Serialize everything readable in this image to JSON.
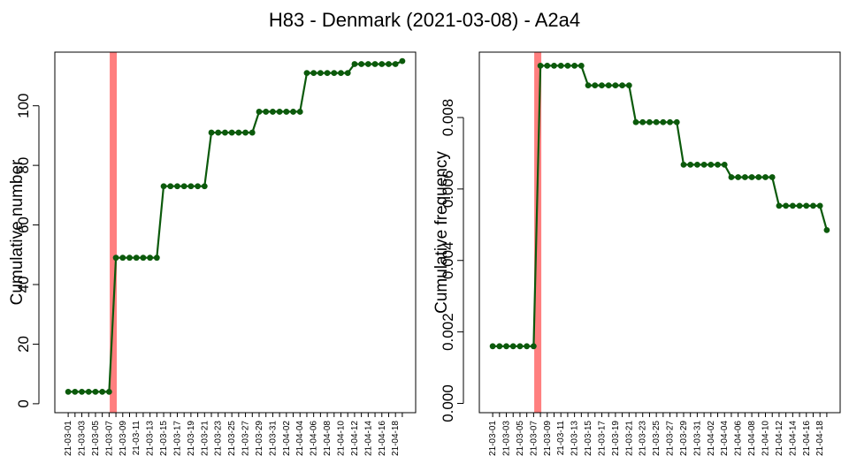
{
  "title": "H83 - Denmark (2021-03-08) - A2a4",
  "chart_data": [
    {
      "type": "line",
      "ylabel": "Cumulative number",
      "xlabel": "",
      "ylim": [
        -3,
        118
      ],
      "yticks": [
        0,
        20,
        40,
        60,
        80,
        100
      ],
      "ytick_labels": [
        "0",
        "20",
        "40",
        "60",
        "80",
        "100"
      ],
      "highlight_date": "2021-03-08",
      "highlight_color": "#ff7f7f",
      "line_color": "#0b5a0b",
      "x": [
        "21-03-01",
        "21-03-02",
        "21-03-03",
        "21-03-04",
        "21-03-05",
        "21-03-06",
        "21-03-07",
        "21-03-08",
        "21-03-09",
        "21-03-10",
        "21-03-11",
        "21-03-12",
        "21-03-13",
        "21-03-14",
        "21-03-15",
        "21-03-16",
        "21-03-17",
        "21-03-18",
        "21-03-19",
        "21-03-20",
        "21-03-21",
        "21-03-22",
        "21-03-23",
        "21-03-24",
        "21-03-25",
        "21-03-26",
        "21-03-27",
        "21-03-28",
        "21-03-29",
        "21-03-30",
        "21-03-31",
        "21-04-01",
        "21-04-02",
        "21-04-03",
        "21-04-04",
        "21-04-05",
        "21-04-06",
        "21-04-07",
        "21-04-08",
        "21-04-09",
        "21-04-10",
        "21-04-11",
        "21-04-12",
        "21-04-13",
        "21-04-14",
        "21-04-15",
        "21-04-16",
        "21-04-17",
        "21-04-18",
        "21-04-19"
      ],
      "x_tick_labels": [
        "21-03-01",
        "21-03-03",
        "21-03-05",
        "21-03-07",
        "21-03-09",
        "21-03-11",
        "21-03-13",
        "21-03-15",
        "21-03-17",
        "21-03-19",
        "21-03-21",
        "21-03-23",
        "21-03-25",
        "21-03-27",
        "21-03-29",
        "21-03-31",
        "21-04-02",
        "21-04-04",
        "21-04-06",
        "21-04-08",
        "21-04-10",
        "21-04-12",
        "21-04-14",
        "21-04-16",
        "21-04-18"
      ],
      "values": [
        4,
        4,
        4,
        4,
        4,
        4,
        4,
        49,
        49,
        49,
        49,
        49,
        49,
        49,
        73,
        73,
        73,
        73,
        73,
        73,
        73,
        91,
        91,
        91,
        91,
        91,
        91,
        91,
        98,
        98,
        98,
        98,
        98,
        98,
        98,
        111,
        111,
        111,
        111,
        111,
        111,
        111,
        114,
        114,
        114,
        114,
        114,
        114,
        114,
        115
      ]
    },
    {
      "type": "line",
      "ylabel": "Cumulative frequency",
      "xlabel": "",
      "ylim": [
        -0.00026,
        0.00983
      ],
      "yticks": [
        0,
        0.002,
        0.004,
        0.006,
        0.008
      ],
      "ytick_labels": [
        "0.000",
        "0.002",
        "0.004",
        "0.006",
        "0.008"
      ],
      "highlight_date": "2021-03-08",
      "highlight_color": "#ff7f7f",
      "line_color": "#0b5a0b",
      "x": [
        "21-03-01",
        "21-03-02",
        "21-03-03",
        "21-03-04",
        "21-03-05",
        "21-03-06",
        "21-03-07",
        "21-03-08",
        "21-03-09",
        "21-03-10",
        "21-03-11",
        "21-03-12",
        "21-03-13",
        "21-03-14",
        "21-03-15",
        "21-03-16",
        "21-03-17",
        "21-03-18",
        "21-03-19",
        "21-03-20",
        "21-03-21",
        "21-03-22",
        "21-03-23",
        "21-03-24",
        "21-03-25",
        "21-03-26",
        "21-03-27",
        "21-03-28",
        "21-03-29",
        "21-03-30",
        "21-03-31",
        "21-04-01",
        "21-04-02",
        "21-04-03",
        "21-04-04",
        "21-04-05",
        "21-04-06",
        "21-04-07",
        "21-04-08",
        "21-04-09",
        "21-04-10",
        "21-04-11",
        "21-04-12",
        "21-04-13",
        "21-04-14",
        "21-04-15",
        "21-04-16",
        "21-04-17",
        "21-04-18",
        "21-04-19"
      ],
      "x_tick_labels": [
        "21-03-01",
        "21-03-03",
        "21-03-05",
        "21-03-07",
        "21-03-09",
        "21-03-11",
        "21-03-13",
        "21-03-15",
        "21-03-17",
        "21-03-19",
        "21-03-21",
        "21-03-23",
        "21-03-25",
        "21-03-27",
        "21-03-29",
        "21-03-31",
        "21-04-02",
        "21-04-04",
        "21-04-06",
        "21-04-08",
        "21-04-10",
        "21-04-12",
        "21-04-14",
        "21-04-16",
        "21-04-18"
      ],
      "values": [
        0.0016,
        0.0016,
        0.0016,
        0.0016,
        0.0016,
        0.0016,
        0.0016,
        0.00945,
        0.00945,
        0.00945,
        0.00945,
        0.00945,
        0.00945,
        0.00945,
        0.0089,
        0.0089,
        0.0089,
        0.0089,
        0.0089,
        0.0089,
        0.0089,
        0.00787,
        0.00787,
        0.00787,
        0.00787,
        0.00787,
        0.00787,
        0.00787,
        0.00668,
        0.00668,
        0.00668,
        0.00668,
        0.00668,
        0.00668,
        0.00668,
        0.00633,
        0.00633,
        0.00633,
        0.00633,
        0.00633,
        0.00633,
        0.00633,
        0.00553,
        0.00553,
        0.00553,
        0.00553,
        0.00553,
        0.00553,
        0.00553,
        0.00485
      ]
    }
  ]
}
